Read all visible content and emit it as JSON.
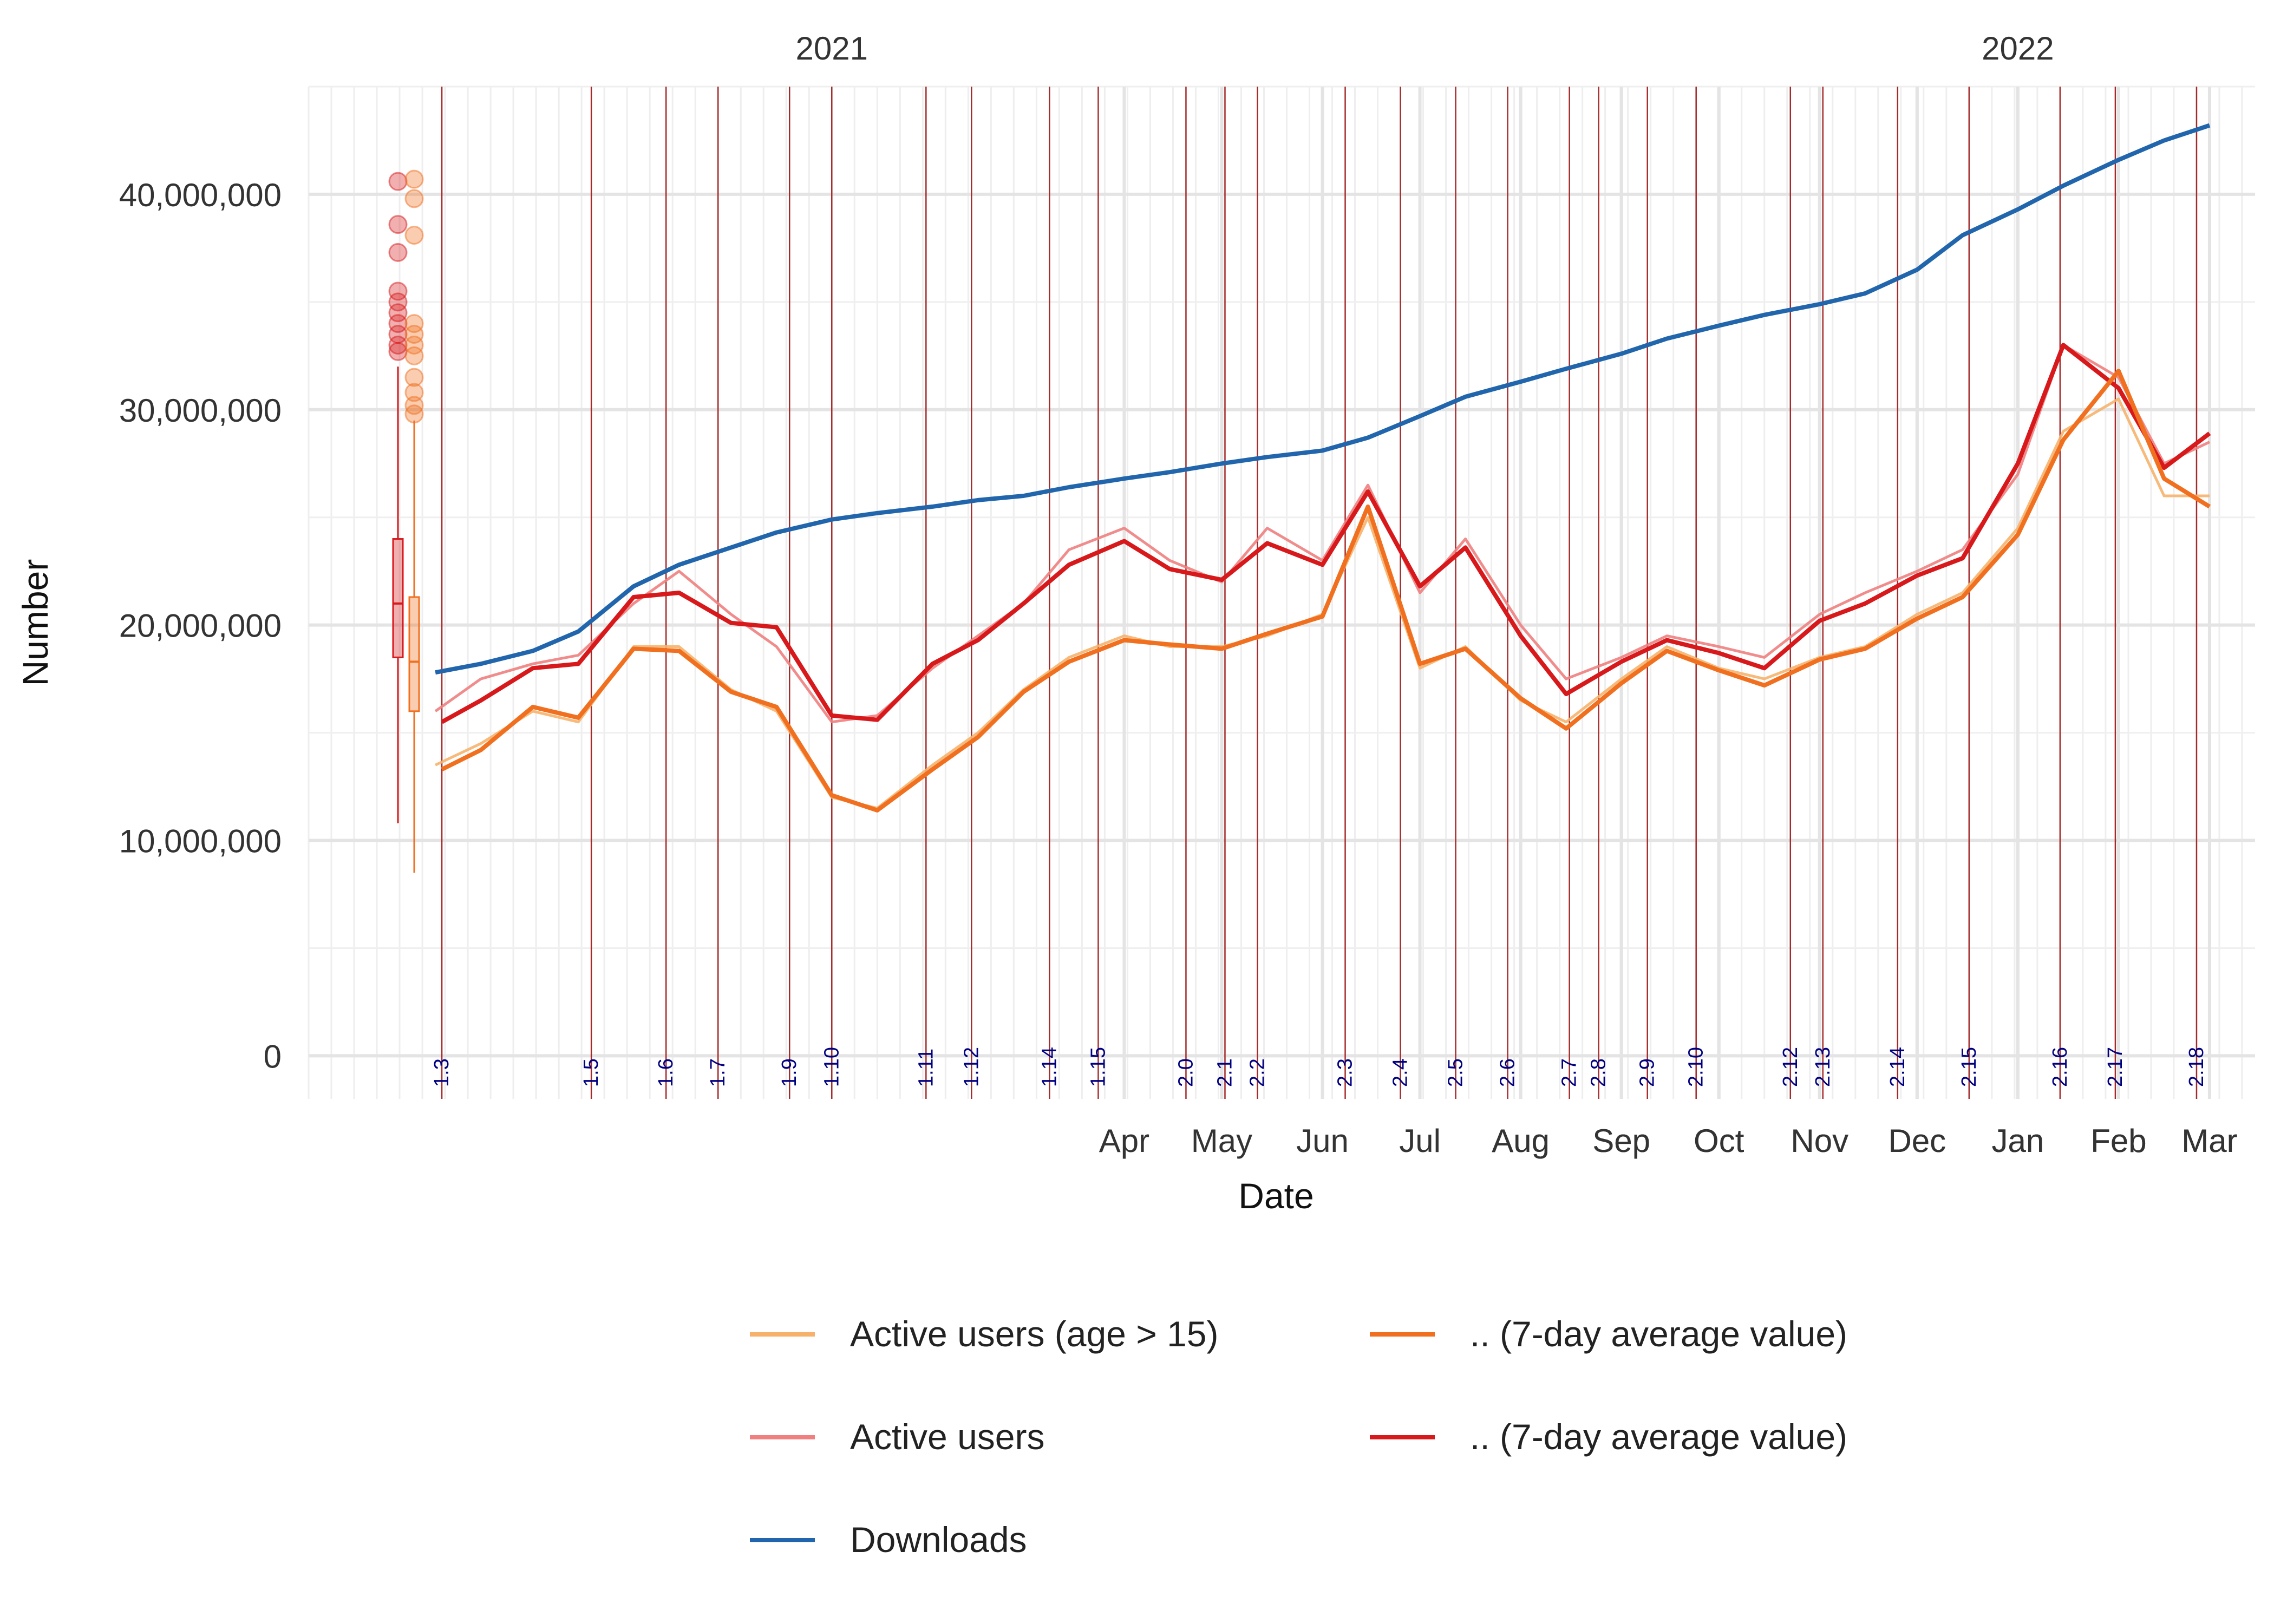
{
  "chart_data": {
    "type": "line",
    "title": "",
    "xlabel": "Date",
    "ylabel": "Number",
    "x_axis": {
      "type": "date",
      "range": [
        "2020-07-24",
        "2022-03-15"
      ],
      "month_ticks": [
        {
          "label": "Aug",
          "date": "2021-08-01"
        },
        {
          "label": "Sep",
          "date": "2021-09-01"
        },
        {
          "label": "Oct",
          "date": "2021-10-01"
        },
        {
          "label": "Nov",
          "date": "2021-11-01"
        },
        {
          "label": "Dec",
          "date": "2021-12-01"
        },
        {
          "label": "Jan",
          "date": "2022-01-01"
        },
        {
          "label": "Feb",
          "date": "2022-02-01"
        },
        {
          "label": "Mar",
          "date": "2022-03-01"
        },
        {
          "label": "Apr",
          "date": "2021-04-01"
        },
        {
          "label": "May",
          "date": "2021-05-01"
        },
        {
          "label": "Jun",
          "date": "2021-06-01"
        },
        {
          "label": "Jul",
          "date": "2021-07-01"
        },
        {
          "label": "Aug",
          "date": "2021-08-01"
        },
        {
          "label": "Sep",
          "date": "2021-09-01"
        },
        {
          "label": "Oct",
          "date": "2021-10-01"
        },
        {
          "label": "Nov",
          "date": "2021-11-01"
        },
        {
          "label": "Dec",
          "date": "2021-12-01"
        },
        {
          "label": "Jan",
          "date": "2022-01-01"
        },
        {
          "label": "Feb",
          "date": "2022-02-01"
        },
        {
          "label": "Mar",
          "date": "2022-03-01"
        }
      ],
      "year_labels": [
        {
          "label": "2021",
          "date": "2021-01-01"
        },
        {
          "label": "2022",
          "date": "2022-01-01"
        }
      ]
    },
    "y_axis": {
      "range": [
        -2000000,
        45000000
      ],
      "ticks": [
        {
          "value": 0,
          "label": "0"
        },
        {
          "value": 10000000,
          "label": "10,000,000"
        },
        {
          "value": 20000000,
          "label": "20,000,000"
        },
        {
          "value": 30000000,
          "label": "30,000,000"
        },
        {
          "value": 40000000,
          "label": "40,000,000"
        }
      ]
    },
    "grid": true,
    "legend_position": "bottom",
    "legend": [
      {
        "label": "Active users (age > 15)",
        "color": "#f6b26b"
      },
      {
        "label": ".. (7-day average value)",
        "color": "#f07020"
      },
      {
        "label": "Active users",
        "color": "#f08080"
      },
      {
        "label": ".. (7-day average value)",
        "color": "#d7191c"
      },
      {
        "label": "Downloads",
        "color": "#2166ac"
      }
    ],
    "version_markers": [
      {
        "label": "1.3",
        "date": "2020-09-03"
      },
      {
        "label": "1.5",
        "date": "2020-10-19"
      },
      {
        "label": "1.6",
        "date": "2020-11-11"
      },
      {
        "label": "1.7",
        "date": "2020-11-27"
      },
      {
        "label": "1.9",
        "date": "2020-12-19"
      },
      {
        "label": "1.10",
        "date": "2021-01-01"
      },
      {
        "label": "1.11",
        "date": "2021-01-30"
      },
      {
        "label": "1.12",
        "date": "2021-02-13"
      },
      {
        "label": "1.14",
        "date": "2021-03-09"
      },
      {
        "label": "1.15",
        "date": "2021-03-24"
      },
      {
        "label": "2.0",
        "date": "2021-04-20"
      },
      {
        "label": "2.1",
        "date": "2021-05-02"
      },
      {
        "label": "2.2",
        "date": "2021-05-12"
      },
      {
        "label": "2.3",
        "date": "2021-06-08"
      },
      {
        "label": "2.4",
        "date": "2021-06-25"
      },
      {
        "label": "2.5",
        "date": "2021-07-12"
      },
      {
        "label": "2.6",
        "date": "2021-07-28"
      },
      {
        "label": "2.7",
        "date": "2021-08-16"
      },
      {
        "label": "2.8",
        "date": "2021-08-25"
      },
      {
        "label": "2.9",
        "date": "2021-09-09"
      },
      {
        "label": "2.10",
        "date": "2021-09-24"
      },
      {
        "label": "2.12",
        "date": "2021-10-23"
      },
      {
        "label": "2.13",
        "date": "2021-11-02"
      },
      {
        "label": "2.14",
        "date": "2021-11-25"
      },
      {
        "label": "2.15",
        "date": "2021-12-17"
      },
      {
        "label": "2.16",
        "date": "2022-01-14"
      },
      {
        "label": "2.17",
        "date": "2022-01-31"
      },
      {
        "label": "2.18",
        "date": "2022-02-25"
      }
    ],
    "series": [
      {
        "name": "Downloads",
        "color": "#2166ac",
        "x": [
          "2020-09-01",
          "2020-09-15",
          "2020-10-01",
          "2020-10-15",
          "2020-11-01",
          "2020-11-15",
          "2020-12-01",
          "2020-12-15",
          "2021-01-01",
          "2021-01-15",
          "2021-02-01",
          "2021-02-15",
          "2021-03-01",
          "2021-03-15",
          "2021-04-01",
          "2021-04-15",
          "2021-05-01",
          "2021-05-15",
          "2021-06-01",
          "2021-06-15",
          "2021-07-01",
          "2021-07-15",
          "2021-08-01",
          "2021-08-15",
          "2021-09-01",
          "2021-09-15",
          "2021-10-01",
          "2021-10-15",
          "2021-11-01",
          "2021-11-15",
          "2021-12-01",
          "2021-12-15",
          "2022-01-01",
          "2022-01-15",
          "2022-02-01",
          "2022-02-15",
          "2022-03-01"
        ],
        "values": [
          17800000,
          18200000,
          18800000,
          19700000,
          21800000,
          22800000,
          23600000,
          24300000,
          24900000,
          25200000,
          25500000,
          25800000,
          26000000,
          26400000,
          26800000,
          27100000,
          27500000,
          27800000,
          28100000,
          28700000,
          29700000,
          30600000,
          31300000,
          31900000,
          32600000,
          33300000,
          33900000,
          34400000,
          34900000,
          35400000,
          36500000,
          38100000,
          39300000,
          40400000,
          41600000,
          42500000,
          43200000
        ]
      },
      {
        "name": "Active users",
        "color": "#f08080",
        "x": [
          "2020-09-01",
          "2020-09-15",
          "2020-10-01",
          "2020-10-15",
          "2020-11-01",
          "2020-11-15",
          "2020-12-01",
          "2020-12-15",
          "2021-01-01",
          "2021-01-15",
          "2021-02-01",
          "2021-02-15",
          "2021-03-01",
          "2021-03-15",
          "2021-04-01",
          "2021-04-15",
          "2021-05-01",
          "2021-05-15",
          "2021-06-01",
          "2021-06-15",
          "2021-07-01",
          "2021-07-15",
          "2021-08-01",
          "2021-08-15",
          "2021-09-01",
          "2021-09-15",
          "2021-10-01",
          "2021-10-15",
          "2021-11-01",
          "2021-11-15",
          "2021-12-01",
          "2021-12-15",
          "2022-01-01",
          "2022-01-15",
          "2022-02-01",
          "2022-02-15",
          "2022-03-01"
        ],
        "values": [
          16000000,
          17500000,
          18200000,
          18600000,
          21000000,
          22500000,
          20500000,
          19000000,
          15500000,
          15800000,
          18000000,
          19500000,
          21000000,
          23500000,
          24500000,
          23000000,
          22000000,
          24500000,
          23000000,
          26500000,
          21500000,
          24000000,
          20000000,
          17500000,
          18500000,
          19500000,
          19000000,
          18500000,
          20500000,
          21500000,
          22500000,
          23500000,
          27000000,
          33000000,
          31500000,
          27500000,
          28500000
        ]
      },
      {
        "name": ".. (7-day average value)",
        "color": "#d7191c",
        "x": [
          "2020-09-03",
          "2020-09-15",
          "2020-10-01",
          "2020-10-15",
          "2020-11-01",
          "2020-11-15",
          "2020-12-01",
          "2020-12-15",
          "2021-01-01",
          "2021-01-15",
          "2021-02-01",
          "2021-02-15",
          "2021-03-01",
          "2021-03-15",
          "2021-04-01",
          "2021-04-15",
          "2021-05-01",
          "2021-05-15",
          "2021-06-01",
          "2021-06-15",
          "2021-07-01",
          "2021-07-15",
          "2021-08-01",
          "2021-08-15",
          "2021-09-01",
          "2021-09-15",
          "2021-10-01",
          "2021-10-15",
          "2021-11-01",
          "2021-11-15",
          "2021-12-01",
          "2021-12-15",
          "2022-01-01",
          "2022-01-15",
          "2022-02-01",
          "2022-02-15",
          "2022-03-01"
        ],
        "values": [
          15500000,
          16500000,
          18000000,
          18200000,
          21300000,
          21500000,
          20100000,
          19900000,
          15800000,
          15600000,
          18200000,
          19300000,
          21000000,
          22800000,
          23900000,
          22600000,
          22100000,
          23800000,
          22800000,
          26200000,
          21800000,
          23600000,
          19500000,
          16800000,
          18300000,
          19300000,
          18700000,
          18000000,
          20200000,
          21000000,
          22300000,
          23100000,
          27500000,
          33000000,
          31000000,
          27300000,
          28900000
        ]
      },
      {
        "name": "Active users (age > 15)",
        "color": "#f6b26b",
        "x": [
          "2020-09-01",
          "2020-09-15",
          "2020-10-01",
          "2020-10-15",
          "2020-11-01",
          "2020-11-15",
          "2020-12-01",
          "2020-12-15",
          "2021-01-01",
          "2021-01-15",
          "2021-02-01",
          "2021-02-15",
          "2021-03-01",
          "2021-03-15",
          "2021-04-01",
          "2021-04-15",
          "2021-05-01",
          "2021-05-15",
          "2021-06-01",
          "2021-06-15",
          "2021-07-01",
          "2021-07-15",
          "2021-08-01",
          "2021-08-15",
          "2021-09-01",
          "2021-09-15",
          "2021-10-01",
          "2021-10-15",
          "2021-11-01",
          "2021-11-15",
          "2021-12-01",
          "2021-12-15",
          "2022-01-01",
          "2022-01-15",
          "2022-02-01",
          "2022-02-15",
          "2022-03-01"
        ],
        "values": [
          13500000,
          14500000,
          16000000,
          15500000,
          19000000,
          19000000,
          17000000,
          16000000,
          12000000,
          11500000,
          13500000,
          15000000,
          17000000,
          18500000,
          19500000,
          19000000,
          19000000,
          19500000,
          20500000,
          25000000,
          18000000,
          19000000,
          16500000,
          15500000,
          17500000,
          19000000,
          18000000,
          17500000,
          18500000,
          19000000,
          20500000,
          21500000,
          24500000,
          29000000,
          30500000,
          26000000,
          26000000
        ]
      },
      {
        "name": ".. (7-day average value)",
        "color": "#f07020",
        "x": [
          "2020-09-03",
          "2020-09-15",
          "2020-10-01",
          "2020-10-15",
          "2020-11-01",
          "2020-11-15",
          "2020-12-01",
          "2020-12-15",
          "2021-01-01",
          "2021-01-15",
          "2021-02-01",
          "2021-02-15",
          "2021-03-01",
          "2021-03-15",
          "2021-04-01",
          "2021-04-15",
          "2021-05-01",
          "2021-05-15",
          "2021-06-01",
          "2021-06-15",
          "2021-07-01",
          "2021-07-15",
          "2021-08-01",
          "2021-08-15",
          "2021-09-01",
          "2021-09-15",
          "2021-10-01",
          "2021-10-15",
          "2021-11-01",
          "2021-11-15",
          "2021-12-01",
          "2021-12-15",
          "2022-01-01",
          "2022-01-15",
          "2022-02-01",
          "2022-02-15",
          "2022-03-01"
        ],
        "values": [
          13300000,
          14200000,
          16200000,
          15700000,
          18900000,
          18800000,
          16900000,
          16200000,
          12100000,
          11400000,
          13300000,
          14800000,
          16900000,
          18300000,
          19300000,
          19100000,
          18900000,
          19600000,
          20400000,
          25500000,
          18200000,
          18900000,
          16600000,
          15200000,
          17300000,
          18800000,
          17900000,
          17200000,
          18400000,
          18900000,
          20300000,
          21300000,
          24200000,
          28600000,
          31800000,
          26800000,
          25500000
        ]
      }
    ],
    "distributions": [
      {
        "name": "Active users",
        "color": "#d7191c",
        "whisker_low": 10800000,
        "q1": 18500000,
        "median": 21000000,
        "q3": 24000000,
        "whisker_high": 32000000,
        "outliers": [
          40600000,
          38600000,
          37300000,
          35500000,
          35000000,
          34500000,
          34000000,
          33500000,
          33000000,
          32700000
        ]
      },
      {
        "name": "Active users (age > 15)",
        "color": "#f07020",
        "whisker_low": 8500000,
        "q1": 16000000,
        "median": 18300000,
        "q3": 21300000,
        "whisker_high": 29500000,
        "outliers": [
          40700000,
          39800000,
          38100000,
          34000000,
          33500000,
          33000000,
          32500000,
          31500000,
          30800000,
          30200000,
          29800000
        ]
      }
    ]
  }
}
